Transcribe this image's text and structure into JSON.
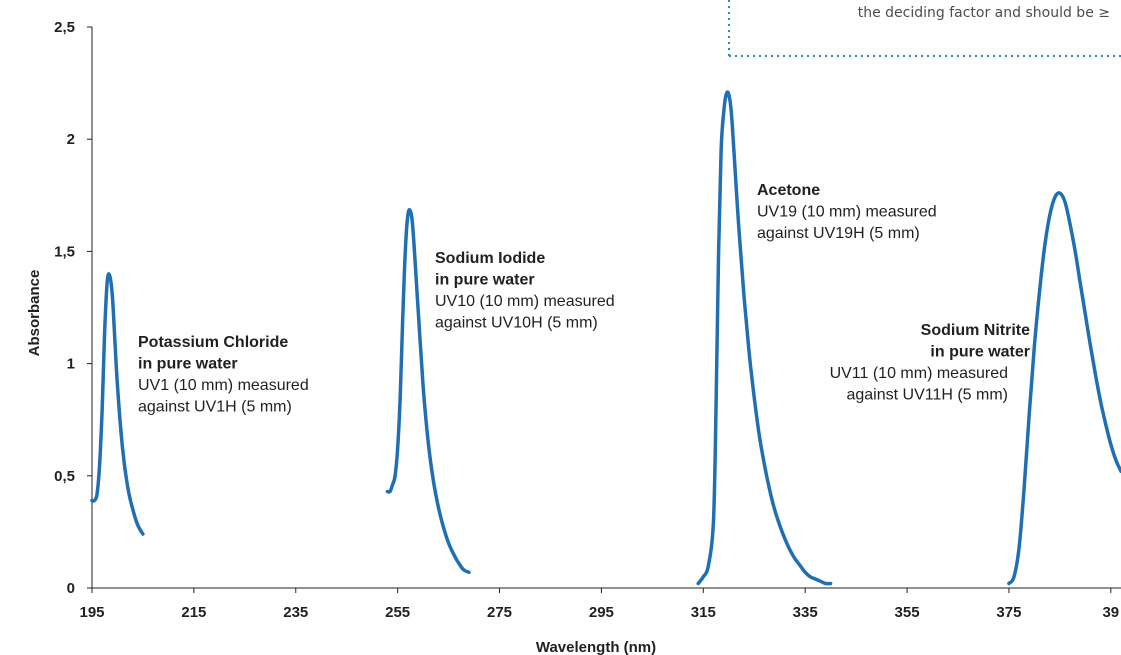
{
  "callout": {
    "text": "the deciding factor and should be ≥",
    "border_color": "#1f8fc0"
  },
  "chart_data": {
    "type": "line",
    "xlabel": "Wavelength (nm)",
    "ylabel": "Absorbance",
    "xlim": [
      195,
      397
    ],
    "ylim": [
      0,
      2.5
    ],
    "x_ticks": [
      "195",
      "215",
      "235",
      "255",
      "275",
      "295",
      "315",
      "335",
      "355",
      "375",
      "39"
    ],
    "y_ticks": [
      "0",
      "0,5",
      "1",
      "1,5",
      "2",
      "2,5"
    ],
    "line_color": "#1f6fb2",
    "grid": false,
    "series": [
      {
        "x": [
          195,
          195.5,
          196,
          196.5,
          197,
          197.5,
          198,
          198.5,
          199,
          199.5,
          200,
          201,
          202,
          203,
          204,
          205
        ],
        "y": [
          0.39,
          0.39,
          0.42,
          0.55,
          0.8,
          1.15,
          1.37,
          1.39,
          1.3,
          1.1,
          0.9,
          0.62,
          0.45,
          0.35,
          0.28,
          0.24
        ]
      },
      {
        "x": [
          253,
          253.5,
          254,
          254.5,
          255,
          255.5,
          256,
          256.5,
          257,
          257.5,
          258,
          259,
          260,
          261,
          262,
          263,
          264,
          265,
          266,
          267,
          268,
          269
        ],
        "y": [
          0.43,
          0.43,
          0.46,
          0.5,
          0.62,
          0.85,
          1.2,
          1.5,
          1.66,
          1.68,
          1.6,
          1.25,
          0.9,
          0.65,
          0.48,
          0.36,
          0.27,
          0.2,
          0.15,
          0.11,
          0.08,
          0.07
        ]
      },
      {
        "x": [
          314,
          315,
          316,
          317,
          317.5,
          318,
          318.5,
          319,
          319.5,
          320,
          320.5,
          321,
          322,
          323,
          324,
          325,
          326,
          327,
          328,
          329,
          330,
          331,
          332,
          333,
          334,
          335,
          336,
          337,
          338,
          339,
          340
        ],
        "y": [
          0.02,
          0.05,
          0.1,
          0.3,
          0.8,
          1.5,
          1.95,
          2.12,
          2.2,
          2.2,
          2.12,
          1.95,
          1.6,
          1.3,
          1.05,
          0.85,
          0.68,
          0.55,
          0.44,
          0.35,
          0.28,
          0.22,
          0.17,
          0.13,
          0.1,
          0.07,
          0.05,
          0.04,
          0.03,
          0.02,
          0.02
        ]
      },
      {
        "x": [
          375,
          376,
          377,
          378,
          379,
          380,
          381,
          382,
          383,
          384,
          385,
          386,
          387,
          388,
          389,
          390,
          391,
          392,
          393,
          394,
          395,
          396,
          397
        ],
        "y": [
          0.02,
          0.05,
          0.18,
          0.45,
          0.78,
          1.08,
          1.32,
          1.52,
          1.66,
          1.74,
          1.76,
          1.72,
          1.62,
          1.5,
          1.36,
          1.22,
          1.08,
          0.95,
          0.83,
          0.73,
          0.64,
          0.57,
          0.52
        ]
      }
    ],
    "annotations": [
      {
        "lines": [
          {
            "text": "Potassium Chloride",
            "bold": true
          },
          {
            "text": "in pure water",
            "bold": true
          },
          {
            "text": "UV1 (10 mm) measured",
            "bold": false
          },
          {
            "text": "against UV1H (5 mm)",
            "bold": false
          }
        ],
        "align": "left"
      },
      {
        "lines": [
          {
            "text": "Sodium Iodide",
            "bold": true
          },
          {
            "text": "in pure water",
            "bold": true
          },
          {
            "text": "UV10 (10 mm) measured",
            "bold": false
          },
          {
            "text": "against UV10H (5 mm)",
            "bold": false
          }
        ],
        "align": "left"
      },
      {
        "lines": [
          {
            "text": "Acetone",
            "bold": true
          },
          {
            "text": "UV19 (10 mm) measured",
            "bold": false
          },
          {
            "text": "against UV19H (5 mm)",
            "bold": false
          }
        ],
        "align": "left"
      },
      {
        "lines": [
          {
            "text": "Sodium Nitrite",
            "bold": true
          },
          {
            "text": "in pure water",
            "bold": true
          },
          {
            "text": "UV11 (10 mm) measured",
            "bold": false
          },
          {
            "text": "against UV11H (5 mm)",
            "bold": false
          }
        ],
        "align": "right"
      }
    ]
  }
}
